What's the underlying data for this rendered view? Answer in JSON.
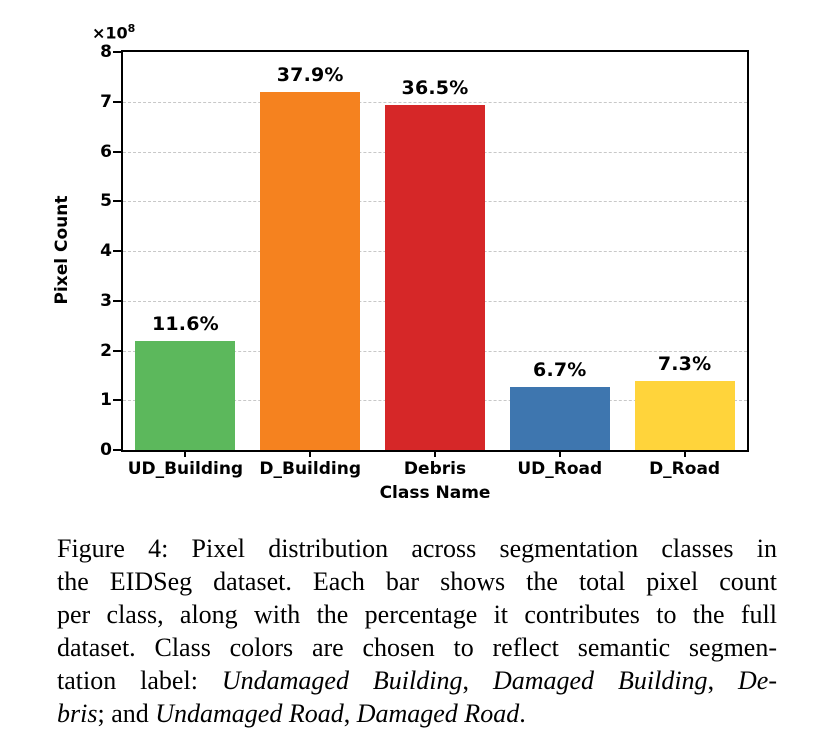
{
  "chart_data": {
    "type": "bar",
    "title": "",
    "xlabel": "Class Name",
    "ylabel": "Pixel Count",
    "y_offset_base": "×10",
    "y_offset_exp": "8",
    "categories": [
      "UD_Building",
      "D_Building",
      "Debris",
      "UD_Road",
      "D_Road"
    ],
    "values": [
      220000000,
      720000000,
      693000000,
      127000000,
      138000000
    ],
    "bar_labels": [
      "11.6%",
      "37.9%",
      "36.5%",
      "6.7%",
      "7.3%"
    ],
    "bar_colors": [
      "#5cb85c",
      "#f5821f",
      "#d62728",
      "#3e76af",
      "#ffd43b"
    ],
    "y_scale": 100000000,
    "ylim": [
      0,
      8
    ],
    "yticks": [
      0,
      1,
      2,
      3,
      4,
      5,
      6,
      7,
      8
    ],
    "grid": "horizontal-dashed",
    "legend": "none"
  },
  "caption": {
    "lines": [
      [
        {
          "t": "Figure 4: Pixel distribution across segmentation classes in",
          "i": false
        }
      ],
      [
        {
          "t": "the EIDSeg dataset. Each bar shows the total pixel count",
          "i": false
        }
      ],
      [
        {
          "t": "per class, along with the percentage it contributes to the full",
          "i": false
        }
      ],
      [
        {
          "t": "dataset. Class colors are chosen to reflect semantic segmen-",
          "i": false
        }
      ],
      [
        {
          "t": "tation label: ",
          "i": false
        },
        {
          "t": "Undamaged Building",
          "i": true
        },
        {
          "t": ", ",
          "i": false
        },
        {
          "t": "Damaged Building",
          "i": true
        },
        {
          "t": ", ",
          "i": false
        },
        {
          "t": "De-",
          "i": true
        }
      ],
      [
        {
          "t": "bris",
          "i": true
        },
        {
          "t": "; and ",
          "i": false
        },
        {
          "t": "Undamaged Road",
          "i": true
        },
        {
          "t": ", ",
          "i": false
        },
        {
          "t": "Damaged Road",
          "i": true
        },
        {
          "t": ".",
          "i": false
        }
      ]
    ]
  }
}
